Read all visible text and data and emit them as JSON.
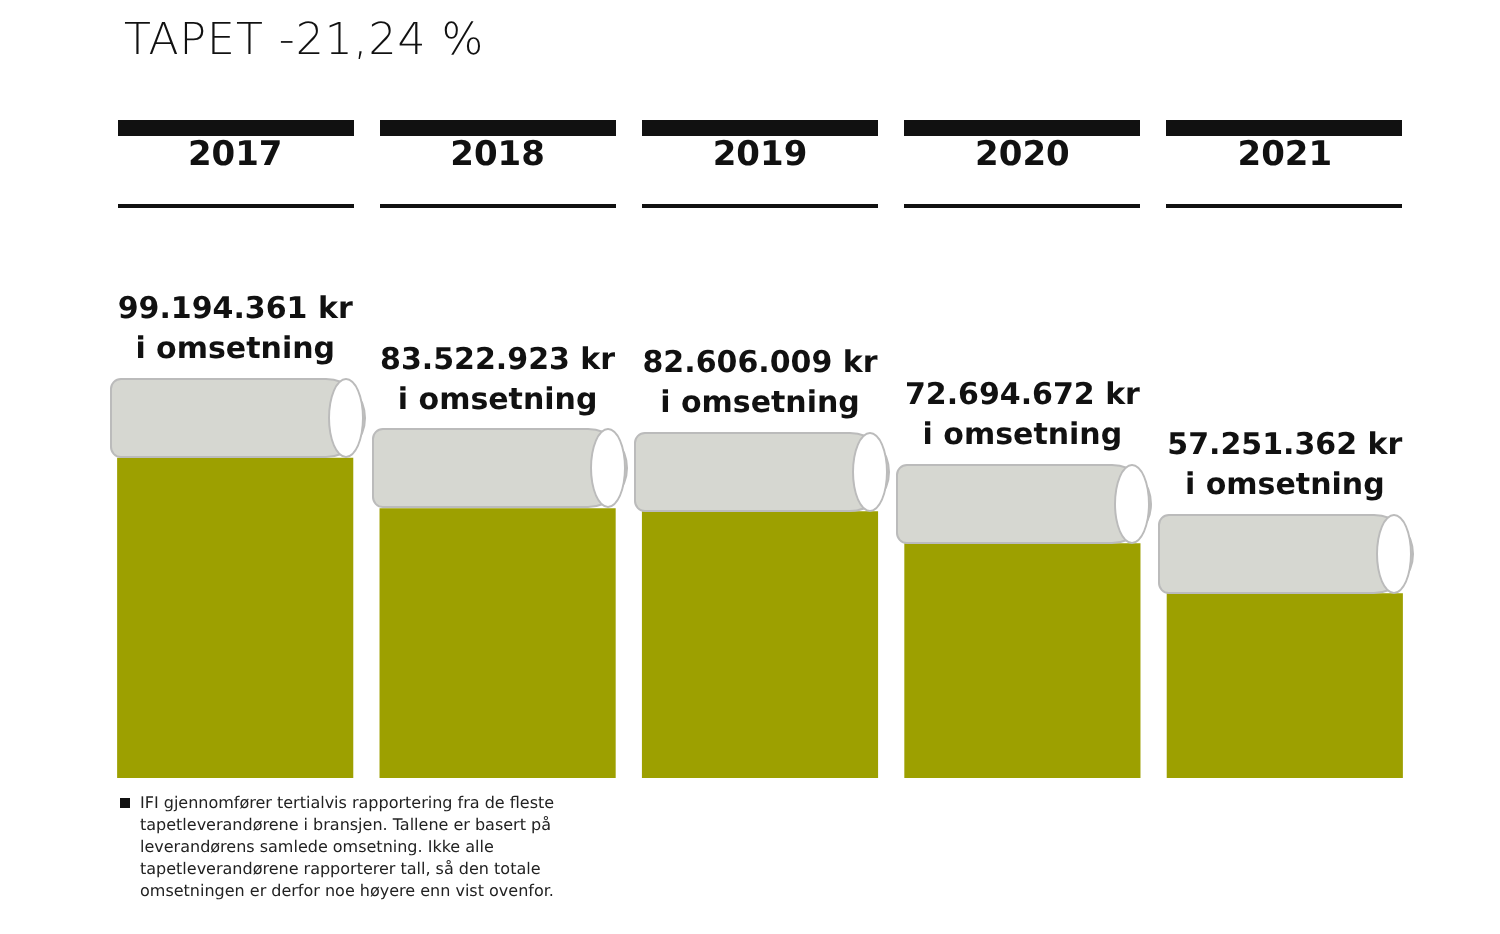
{
  "chart_data": {
    "type": "bar",
    "title": "TAPET -21,24 %",
    "categories": [
      "2017",
      "2018",
      "2019",
      "2020",
      "2021"
    ],
    "values": [
      99194361,
      83522923,
      82606009,
      72694672,
      57251362
    ],
    "value_labels": [
      "99.194.361 kr i omsetning",
      "83.522.923 kr i omsetning",
      "82.606.009 kr i omsetning",
      "72.694.672 kr i omsetning",
      "57.251.362 kr i omsetning"
    ],
    "color": "#9da000",
    "annotations": [
      "IFI gjennomfører tertialvis rapportering fra de fleste tapetleverandørene i bransjen. Tallene er basert på leverandørens samlede omsetning. Ikke alle tapetleverandørene rapporterer tall, så den totale omsetningen er derfor noe høyere enn vist ovenfor."
    ],
    "legend": false,
    "grid": false
  }
}
